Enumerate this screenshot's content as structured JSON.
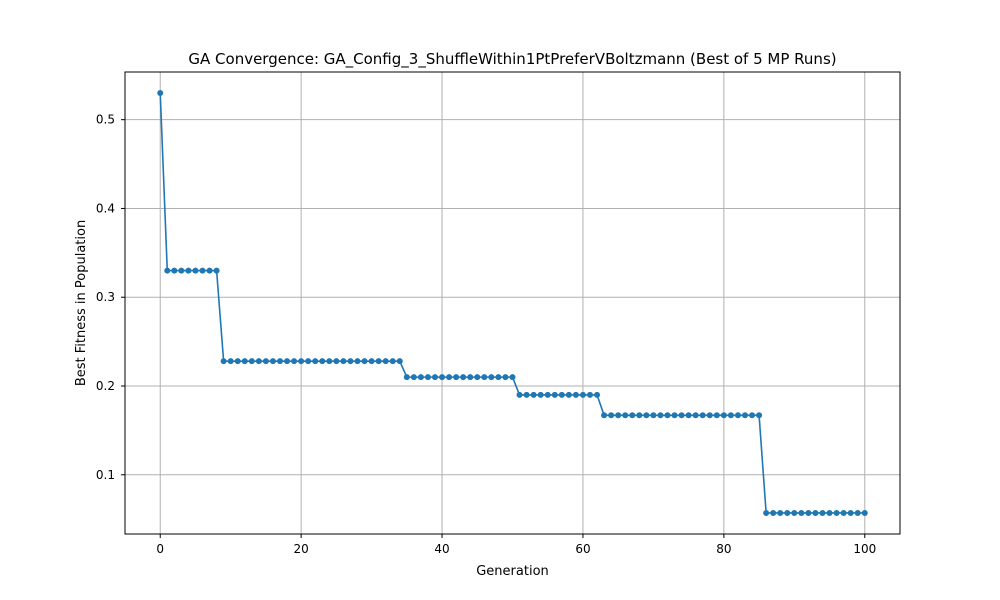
{
  "chart_data": {
    "type": "line",
    "title": "GA Convergence: GA_Config_3_ShuffleWithin1PtPreferVBoltzmann (Best of 5 MP Runs)",
    "xlabel": "Generation",
    "ylabel": "Best Fitness in Population",
    "xlim": [
      -5,
      105
    ],
    "ylim": [
      0.0333,
      0.5537
    ],
    "x_ticks": [
      0,
      20,
      40,
      60,
      80,
      100
    ],
    "y_ticks": [
      0.1,
      0.2,
      0.3,
      0.4,
      0.5
    ],
    "x_tick_labels": [
      "0",
      "20",
      "40",
      "60",
      "80",
      "100"
    ],
    "y_tick_labels": [
      "0.1",
      "0.2",
      "0.3",
      "0.4",
      "0.5"
    ],
    "grid": true,
    "marker": "circle",
    "color": "#1f77b4",
    "x": [
      0,
      1,
      2,
      3,
      4,
      5,
      6,
      7,
      8,
      9,
      10,
      11,
      12,
      13,
      14,
      15,
      16,
      17,
      18,
      19,
      20,
      21,
      22,
      23,
      24,
      25,
      26,
      27,
      28,
      29,
      30,
      31,
      32,
      33,
      34,
      35,
      36,
      37,
      38,
      39,
      40,
      41,
      42,
      43,
      44,
      45,
      46,
      47,
      48,
      49,
      50,
      51,
      52,
      53,
      54,
      55,
      56,
      57,
      58,
      59,
      60,
      61,
      62,
      63,
      64,
      65,
      66,
      67,
      68,
      69,
      70,
      71,
      72,
      73,
      74,
      75,
      76,
      77,
      78,
      79,
      80,
      81,
      82,
      83,
      84,
      85,
      86,
      87,
      88,
      89,
      90,
      91,
      92,
      93,
      94,
      95,
      96,
      97,
      98,
      99,
      100
    ],
    "series": [
      {
        "values": [
          0.53,
          0.33,
          0.33,
          0.33,
          0.33,
          0.33,
          0.33,
          0.33,
          0.33,
          0.228,
          0.228,
          0.228,
          0.228,
          0.228,
          0.228,
          0.228,
          0.228,
          0.228,
          0.228,
          0.228,
          0.228,
          0.228,
          0.228,
          0.228,
          0.228,
          0.228,
          0.228,
          0.228,
          0.228,
          0.228,
          0.228,
          0.228,
          0.228,
          0.228,
          0.228,
          0.21,
          0.21,
          0.21,
          0.21,
          0.21,
          0.21,
          0.21,
          0.21,
          0.21,
          0.21,
          0.21,
          0.21,
          0.21,
          0.21,
          0.21,
          0.21,
          0.19,
          0.19,
          0.19,
          0.19,
          0.19,
          0.19,
          0.19,
          0.19,
          0.19,
          0.19,
          0.19,
          0.19,
          0.167,
          0.167,
          0.167,
          0.167,
          0.167,
          0.167,
          0.167,
          0.167,
          0.167,
          0.167,
          0.167,
          0.167,
          0.167,
          0.167,
          0.167,
          0.167,
          0.167,
          0.167,
          0.167,
          0.167,
          0.167,
          0.167,
          0.167,
          0.057,
          0.057,
          0.057,
          0.057,
          0.057,
          0.057,
          0.057,
          0.057,
          0.057,
          0.057,
          0.057,
          0.057,
          0.057,
          0.057,
          0.057
        ]
      }
    ]
  }
}
